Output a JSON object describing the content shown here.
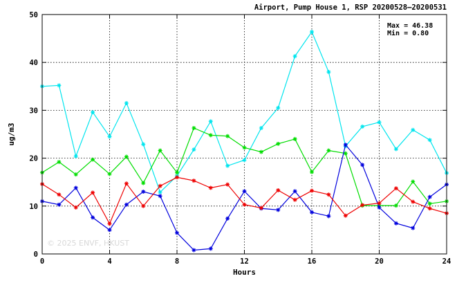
{
  "chart_data": {
    "type": "line",
    "title": "Airport, Pump House 1, RSP 20200528–20200531",
    "xlabel": "Hours",
    "ylabel": "ug/m3",
    "xlim": [
      0,
      24
    ],
    "ylim": [
      0,
      50
    ],
    "x_ticks": [
      0,
      4,
      8,
      12,
      16,
      20,
      24
    ],
    "y_ticks": [
      0,
      10,
      20,
      30,
      40,
      50
    ],
    "grid": true,
    "stats": {
      "max_label": "Max = 46.38",
      "min_label": "Min =  0.80"
    },
    "watermark": "© 2025  ENVF, HKUST",
    "x": [
      0,
      1,
      2,
      3,
      4,
      5,
      6,
      7,
      8,
      9,
      10,
      11,
      12,
      13,
      14,
      15,
      16,
      17,
      18,
      19,
      20,
      21,
      22,
      23,
      24
    ],
    "series": [
      {
        "color": "#00e5ee",
        "values": [
          35.0,
          35.2,
          20.4,
          29.6,
          24.5,
          31.5,
          22.9,
          12.9,
          16.3,
          21.8,
          27.7,
          18.4,
          19.6,
          26.3,
          30.5,
          41.3,
          46.38,
          38.0,
          22.5,
          26.6,
          27.5,
          21.9,
          25.9,
          23.8,
          16.9
        ]
      },
      {
        "color": "#00dd00",
        "values": [
          17.0,
          19.2,
          16.6,
          19.7,
          16.7,
          20.3,
          14.8,
          21.6,
          17.0,
          26.3,
          24.8,
          24.6,
          22.2,
          21.3,
          23.0,
          24.0,
          17.1,
          21.6,
          21.0,
          10.1,
          10.1,
          10.1,
          15.1,
          10.5,
          11.0
        ]
      },
      {
        "color": "#0000dd",
        "values": [
          11.0,
          10.3,
          13.8,
          7.6,
          5.0,
          10.3,
          13.0,
          12.1,
          4.4,
          0.8,
          1.1,
          7.4,
          13.1,
          9.5,
          9.2,
          13.1,
          8.7,
          7.9,
          22.8,
          18.6,
          9.7,
          6.4,
          5.4,
          11.9,
          14.5
        ]
      },
      {
        "color": "#ee0000",
        "values": [
          14.6,
          12.4,
          9.7,
          12.8,
          6.3,
          14.7,
          10.0,
          14.2,
          16.0,
          15.3,
          13.8,
          14.5,
          10.3,
          9.6,
          13.3,
          11.3,
          13.2,
          12.4,
          8.0,
          10.2,
          10.6,
          13.7,
          10.9,
          9.5,
          8.5
        ]
      }
    ]
  }
}
